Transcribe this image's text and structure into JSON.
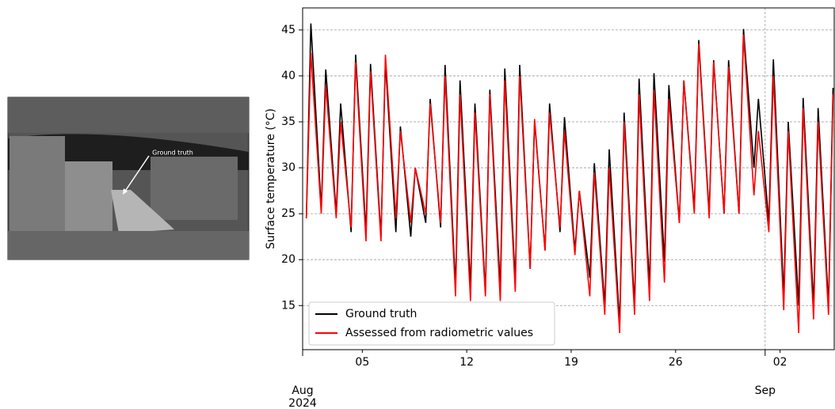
{
  "image": {
    "annotation": "Ground truth"
  },
  "chart_data": {
    "type": "line",
    "y_label": "Surface temperature (°C)",
    "x": [
      0.25,
      0.55,
      1.25,
      1.55,
      2.25,
      2.55,
      3.25,
      3.55,
      4.25,
      4.55,
      5.25,
      5.55,
      6.25,
      6.55,
      7.25,
      7.55,
      8.25,
      8.55,
      9.25,
      9.55,
      10.25,
      10.55,
      11.25,
      11.55,
      12.25,
      12.55,
      13.25,
      13.55,
      14.25,
      14.55,
      15.25,
      15.55,
      16.25,
      16.55,
      17.25,
      17.55,
      18.25,
      18.55,
      19.25,
      19.55,
      20.25,
      20.55,
      21.25,
      21.55,
      22.25,
      22.55,
      23.25,
      23.55,
      24.25,
      24.55,
      25.25,
      25.55,
      26.25,
      26.55,
      27.25,
      27.55,
      28.25,
      28.55,
      29.25,
      29.55,
      30.25,
      30.55,
      31.25,
      31.55,
      32.25,
      32.55,
      33.25,
      33.55,
      34.25,
      34.55,
      35.25,
      35.55
    ],
    "series": [
      {
        "name": "Ground truth",
        "color": "#000000",
        "values": [
          24.5,
          45.7,
          25.5,
          40.7,
          25,
          37,
          23,
          42.3,
          23,
          41.3,
          22.5,
          41.5,
          23,
          34.5,
          22.5,
          30,
          24,
          37.5,
          23.5,
          41.2,
          17,
          39.5,
          17,
          37,
          16.5,
          38.5,
          17,
          40.8,
          17.5,
          41.2,
          19,
          35,
          21,
          37,
          23,
          35.5,
          21,
          27.5,
          18,
          30.5,
          15,
          32,
          13,
          36,
          15,
          39.7,
          17,
          40.3,
          19.8,
          39,
          24,
          39.5,
          25.5,
          43.9,
          25,
          41.7,
          25,
          41.7,
          25,
          45.1,
          30,
          37.5,
          24,
          41.8,
          16,
          35,
          15,
          37.6,
          15,
          36.5,
          15,
          38.7
        ]
      },
      {
        "name": "Assessed from radiometric values",
        "color": "#ff0000",
        "values": [
          24.5,
          42.5,
          25,
          39,
          24.5,
          35,
          23.5,
          41.5,
          22,
          40.5,
          22,
          42.3,
          24.5,
          34,
          24,
          30,
          25,
          37,
          24,
          40,
          16,
          38,
          15.5,
          36,
          16,
          38,
          15.5,
          39.5,
          16.5,
          40,
          19,
          35.3,
          21,
          36,
          23.5,
          34,
          20.5,
          27.5,
          16,
          29.5,
          14,
          30,
          12,
          35,
          14,
          38,
          15.5,
          38.5,
          17.5,
          37.5,
          24,
          39.5,
          25,
          43.5,
          24.5,
          41.5,
          25,
          41,
          25,
          44.5,
          27,
          34,
          23,
          40,
          14.5,
          34,
          12,
          36.5,
          13.5,
          35,
          14,
          38
        ]
      }
    ],
    "xlim": [
      0,
      35.63
    ],
    "xticks": [
      {
        "value": 4,
        "label": "05"
      },
      {
        "value": 11,
        "label": "12"
      },
      {
        "value": 18,
        "label": "19"
      },
      {
        "value": 25,
        "label": "26"
      },
      {
        "value": 32,
        "label": "02"
      }
    ],
    "month_ticks": [
      {
        "value": 0,
        "label": "Aug\n2024"
      },
      {
        "value": 31,
        "label": "Sep"
      }
    ],
    "ylim": [
      10.2,
      47.4
    ],
    "yticks": [
      15,
      20,
      25,
      30,
      35,
      40,
      45
    ],
    "grid": true,
    "legend": "lower-left"
  }
}
